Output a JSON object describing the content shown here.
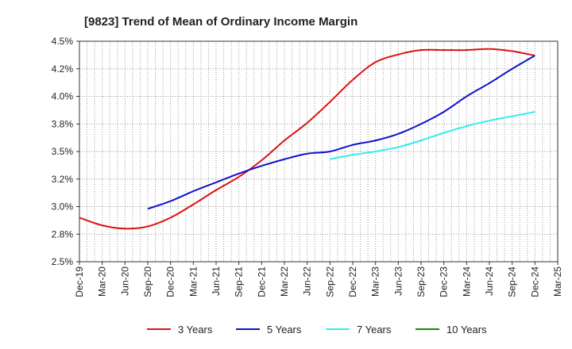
{
  "chart_data": {
    "type": "line",
    "title": "[9823]  Trend of Mean of Ordinary Income Margin",
    "xlabel": "",
    "ylabel": "",
    "x": [
      "Dec-19",
      "Mar-20",
      "Jun-20",
      "Sep-20",
      "Dec-20",
      "Mar-21",
      "Jun-21",
      "Sep-21",
      "Dec-21",
      "Mar-22",
      "Jun-22",
      "Sep-22",
      "Dec-22",
      "Mar-23",
      "Jun-23",
      "Sep-23",
      "Dec-23",
      "Mar-24",
      "Jun-24",
      "Sep-24",
      "Dec-24",
      "Mar-25"
    ],
    "ylim": [
      2.5,
      4.5
    ],
    "yticks": [
      "2.5%",
      "2.8%",
      "3.0%",
      "3.2%",
      "3.5%",
      "3.8%",
      "4.0%",
      "4.2%",
      "4.5%"
    ],
    "grid": true,
    "legend_position": "bottom",
    "series": [
      {
        "name": "3 Years",
        "color": "#dd1111",
        "values": [
          2.9,
          2.83,
          2.8,
          2.82,
          2.9,
          3.02,
          3.15,
          3.27,
          3.42,
          3.6,
          3.76,
          3.95,
          4.15,
          4.31,
          4.38,
          4.42,
          4.42,
          4.42,
          4.43,
          4.41,
          4.37,
          null
        ]
      },
      {
        "name": "5 Years",
        "color": "#1111cc",
        "values": [
          null,
          null,
          null,
          2.98,
          3.05,
          3.14,
          3.22,
          3.3,
          3.37,
          3.43,
          3.48,
          3.5,
          3.56,
          3.6,
          3.66,
          3.75,
          3.86,
          4.0,
          4.12,
          4.25,
          4.37,
          null
        ]
      },
      {
        "name": "7 Years",
        "color": "#33eeee",
        "values": [
          null,
          null,
          null,
          null,
          null,
          null,
          null,
          null,
          null,
          null,
          null,
          3.43,
          3.47,
          3.5,
          3.54,
          3.6,
          3.67,
          3.73,
          3.78,
          3.82,
          3.86,
          null
        ]
      },
      {
        "name": "10 Years",
        "color": "#118811",
        "values": [
          null,
          null,
          null,
          null,
          null,
          null,
          null,
          null,
          null,
          null,
          null,
          null,
          null,
          null,
          null,
          null,
          null,
          null,
          null,
          null,
          null,
          null
        ]
      }
    ]
  }
}
